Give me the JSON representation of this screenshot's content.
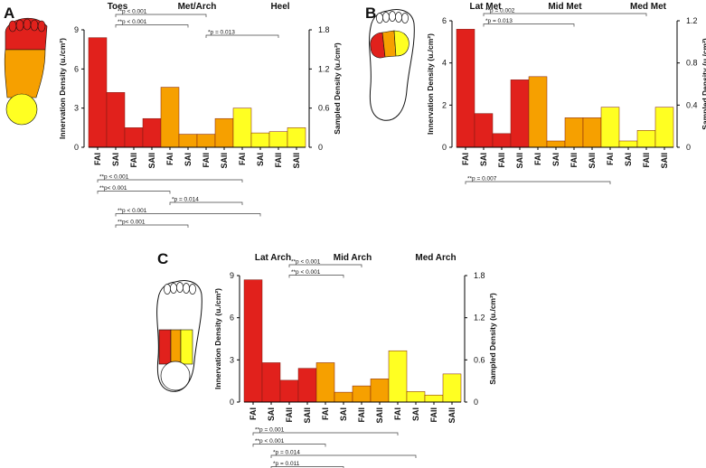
{
  "chart_data": [
    {
      "type": "bar",
      "panel": "A",
      "ylabel": "Innervation Density (u./cm²)",
      "y2label": "Sampled Density (u./cm²)",
      "categories": [
        "FAI",
        "SAI",
        "FAII",
        "SAII",
        "FAI",
        "SAI",
        "FAII",
        "SAII",
        "FAI",
        "SAI",
        "FAII",
        "SAII"
      ],
      "values": [
        8.4,
        4.2,
        1.5,
        2.2,
        4.6,
        1.0,
        1.0,
        2.2,
        3.0,
        1.1,
        1.2,
        1.5
      ],
      "groups": [
        "Toes",
        "Met/Arch",
        "Heel"
      ],
      "colors": [
        "#e1211c",
        "#f6a000",
        "#ffff22"
      ],
      "ylim": [
        0,
        9
      ],
      "yticks": [
        0,
        3,
        6,
        9
      ],
      "y2lim": [
        0,
        1.8
      ],
      "y2ticks": [
        0,
        0.6,
        1.2,
        1.8
      ],
      "annotations": [
        {
          "text": "**p < 0.001",
          "from": 1,
          "to": 6,
          "side": "top"
        },
        {
          "text": "**p < 0.001",
          "from": 1,
          "to": 5,
          "side": "top"
        },
        {
          "text": "*p = 0.013",
          "from": 6,
          "to": 10,
          "side": "top"
        },
        {
          "text": "**p < 0.001",
          "from": 0,
          "to": 8,
          "side": "bottom"
        },
        {
          "text": "**p< 0.001",
          "from": 0,
          "to": 4,
          "side": "bottom"
        },
        {
          "text": "*p = 0.014",
          "from": 4,
          "to": 8,
          "side": "bottom"
        },
        {
          "text": "**p < 0.001",
          "from": 1,
          "to": 9,
          "side": "bottom"
        },
        {
          "text": "**p< 0.001",
          "from": 1,
          "to": 5,
          "side": "bottom"
        }
      ]
    },
    {
      "type": "bar",
      "panel": "B",
      "ylabel": "Innervation Density (u./cm²)",
      "y2label": "Sampled Density (u./cm²)",
      "categories": [
        "FAI",
        "SAI",
        "FAII",
        "SAII",
        "FAI",
        "SAI",
        "FAII",
        "SAII",
        "FAI",
        "SAI",
        "FAII",
        "SAII"
      ],
      "values": [
        5.6,
        1.6,
        0.65,
        3.2,
        3.35,
        0.3,
        1.4,
        1.4,
        1.9,
        0.3,
        0.8,
        1.9
      ],
      "groups": [
        "Lat Met",
        "Mid Met",
        "Med Met"
      ],
      "colors": [
        "#e1211c",
        "#f6a000",
        "#ffff22"
      ],
      "ylim": [
        0,
        6
      ],
      "yticks": [
        0,
        2,
        4,
        6
      ],
      "y2lim": [
        0,
        1.2
      ],
      "y2ticks": [
        0,
        0.4,
        0.8,
        1.2
      ],
      "annotations": [
        {
          "text": "**p = 0.002",
          "from": 1,
          "to": 10,
          "side": "top"
        },
        {
          "text": "*p = 0.013",
          "from": 1,
          "to": 6,
          "side": "top"
        },
        {
          "text": "**p = 0.007",
          "from": 0,
          "to": 8,
          "side": "bottom"
        }
      ]
    },
    {
      "type": "bar",
      "panel": "C",
      "ylabel": "Innervation Density (u./cm²)",
      "y2label": "Sampled Density (u./cm²)",
      "categories": [
        "FAI",
        "SAI",
        "FAII",
        "SAII",
        "FAI",
        "SAI",
        "FAII",
        "SAII",
        "FAI",
        "SAI",
        "FAII",
        "SAII"
      ],
      "values": [
        8.7,
        2.8,
        1.55,
        2.4,
        2.8,
        0.7,
        1.15,
        1.65,
        3.65,
        0.75,
        0.5,
        2.0
      ],
      "groups": [
        "Lat Arch",
        "Mid Arch",
        "Med Arch"
      ],
      "colors": [
        "#e1211c",
        "#f6a000",
        "#ffff22"
      ],
      "ylim": [
        0,
        9
      ],
      "yticks": [
        0,
        3,
        6,
        9
      ],
      "y2lim": [
        0,
        1.8
      ],
      "y2ticks": [
        0,
        0.6,
        1.2,
        1.8
      ],
      "annotations": [
        {
          "text": "**p < 0.001",
          "from": 2,
          "to": 6,
          "side": "top"
        },
        {
          "text": "**p < 0.001",
          "from": 2,
          "to": 5,
          "side": "top"
        },
        {
          "text": "**p = 0.001",
          "from": 0,
          "to": 8,
          "side": "bottom"
        },
        {
          "text": "**p < 0.001",
          "from": 0,
          "to": 4,
          "side": "bottom"
        },
        {
          "text": "*p = 0.014",
          "from": 1,
          "to": 9,
          "side": "bottom"
        },
        {
          "text": "*p = 0.011",
          "from": 1,
          "to": 5,
          "side": "bottom"
        }
      ]
    }
  ]
}
